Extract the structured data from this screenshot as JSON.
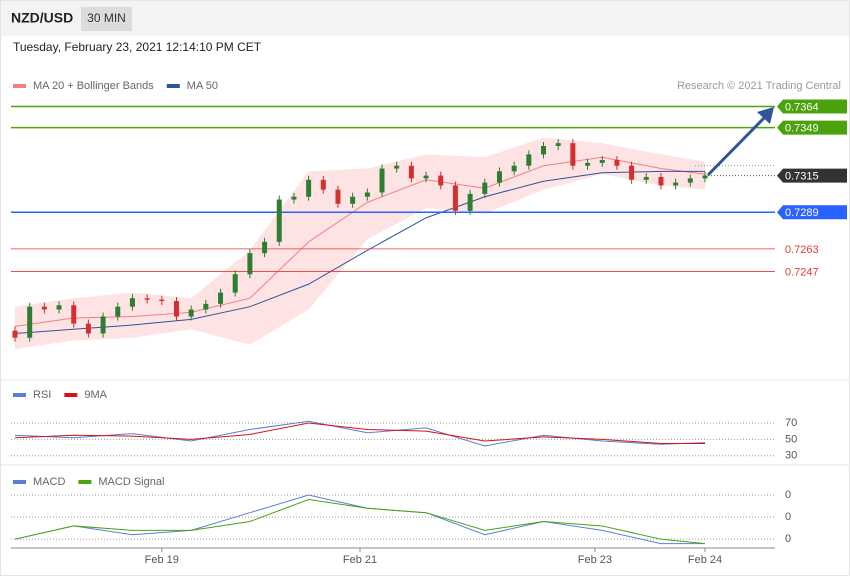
{
  "header": {
    "symbol": "NZD/USD",
    "interval": "30 MIN",
    "timestamp": "Tuesday, February 23, 2021 12:14:10 PM CET"
  },
  "chart_data": [
    {
      "type": "candlestick",
      "source": "Research © 2021 Trading Central",
      "xlim": [
        0,
        47
      ],
      "ylim": [
        0.717,
        0.7414
      ],
      "up_color": "#2e7d32",
      "down_color": "#d32f2f",
      "open": [
        0.7205,
        0.72,
        0.7222,
        0.722,
        0.7223,
        0.721,
        0.7203,
        0.7215,
        0.7222,
        0.7228,
        0.7227,
        0.7226,
        0.7215,
        0.722,
        0.7224,
        0.7232,
        0.7245,
        0.726,
        0.7268,
        0.7298,
        0.73,
        0.7312,
        0.7305,
        0.7295,
        0.73,
        0.7303,
        0.732,
        0.7322,
        0.7313,
        0.7315,
        0.7308,
        0.729,
        0.7302,
        0.731,
        0.7318,
        0.7322,
        0.733,
        0.7336,
        0.7338,
        0.7322,
        0.7324,
        0.7326,
        0.7322,
        0.7312,
        0.7314,
        0.7308,
        0.731,
        0.7313
      ],
      "close": [
        0.72,
        0.7222,
        0.722,
        0.7223,
        0.721,
        0.7203,
        0.7215,
        0.7222,
        0.7228,
        0.7227,
        0.7226,
        0.7215,
        0.722,
        0.7224,
        0.7232,
        0.7245,
        0.726,
        0.7268,
        0.7298,
        0.73,
        0.7312,
        0.7305,
        0.7295,
        0.73,
        0.7303,
        0.732,
        0.7322,
        0.7313,
        0.7315,
        0.7308,
        0.729,
        0.7302,
        0.731,
        0.7318,
        0.7322,
        0.733,
        0.7336,
        0.7338,
        0.7322,
        0.7324,
        0.7326,
        0.7322,
        0.7312,
        0.7314,
        0.7308,
        0.731,
        0.7313,
        0.7315
      ],
      "series": [
        {
          "name": "MA 20 + Bollinger Bands",
          "color": "#f08080",
          "band_color": "#fde3e3",
          "x": [
            0,
            4,
            8,
            12,
            16,
            20,
            24,
            28,
            32,
            36,
            40,
            44,
            47
          ],
          "values": [
            0.7208,
            0.7214,
            0.7215,
            0.7218,
            0.7228,
            0.7268,
            0.7296,
            0.7312,
            0.7306,
            0.7322,
            0.7328,
            0.732,
            0.7316
          ],
          "upper": [
            0.7222,
            0.7228,
            0.7232,
            0.7228,
            0.7262,
            0.7318,
            0.732,
            0.733,
            0.7328,
            0.7342,
            0.7338,
            0.733,
            0.7325
          ],
          "lower": [
            0.7192,
            0.7198,
            0.72,
            0.7206,
            0.7195,
            0.722,
            0.727,
            0.7292,
            0.7288,
            0.7305,
            0.7316,
            0.7308,
            0.7305
          ]
        },
        {
          "name": "MA 50",
          "color": "#2f5597",
          "x": [
            0,
            4,
            8,
            12,
            16,
            20,
            24,
            28,
            32,
            36,
            40,
            44,
            47
          ],
          "values": [
            0.7203,
            0.7206,
            0.7209,
            0.7213,
            0.7222,
            0.7238,
            0.7262,
            0.7285,
            0.73,
            0.7311,
            0.7317,
            0.7318,
            0.7318
          ]
        }
      ],
      "levels": [
        {
          "value": 0.7364,
          "color": "#4ca20c",
          "style": "box"
        },
        {
          "value": 0.7349,
          "color": "#4ca20c",
          "style": "box"
        },
        {
          "value": 0.7315,
          "color": "#333333",
          "style": "current"
        },
        {
          "value": 0.7289,
          "color": "#2962ff",
          "style": "box"
        },
        {
          "value": 0.7263,
          "color": "#e53935",
          "style": "text"
        },
        {
          "value": 0.7247,
          "color": "#e53935",
          "style": "text"
        }
      ]
    },
    {
      "type": "line",
      "xlim": [
        0,
        47
      ],
      "ylim": [
        20,
        115
      ],
      "yticks": [
        70,
        50,
        30
      ],
      "grid": true,
      "series": [
        {
          "name": "RSI",
          "color": "#5b7fd6",
          "x": [
            0,
            4,
            8,
            12,
            16,
            20,
            24,
            28,
            32,
            36,
            40,
            44,
            47
          ],
          "values": [
            55,
            52,
            57,
            48,
            62,
            72,
            58,
            64,
            42,
            55,
            48,
            44,
            46
          ]
        },
        {
          "name": "9MA",
          "color": "#e01010",
          "x": [
            0,
            4,
            8,
            12,
            16,
            20,
            24,
            28,
            32,
            36,
            40,
            44,
            47
          ],
          "values": [
            52,
            55,
            54,
            50,
            56,
            70,
            62,
            60,
            48,
            53,
            50,
            45,
            45
          ]
        }
      ]
    },
    {
      "type": "line",
      "xlim": [
        0,
        47
      ],
      "ylim": [
        -0.0007,
        0.001
      ],
      "yticks": [
        {
          "value": 0.0005,
          "label": "0"
        },
        {
          "value": 0,
          "label": "0"
        },
        {
          "value": -0.0005,
          "label": "0"
        }
      ],
      "grid": true,
      "xticks": [
        {
          "value": 10,
          "label": "Feb 19"
        },
        {
          "value": 23.5,
          "label": "Feb 21"
        },
        {
          "value": 39.5,
          "label": "Feb 23"
        },
        {
          "value": 47,
          "label": "Feb 24"
        }
      ],
      "series": [
        {
          "name": "MACD",
          "color": "#5b7fd6",
          "x": [
            0,
            4,
            8,
            12,
            16,
            20,
            24,
            28,
            32,
            36,
            40,
            44,
            47
          ],
          "values": [
            -0.0005,
            -0.0002,
            -0.0004,
            -0.0003,
            0.0001,
            0.0005,
            0.0002,
            0.0001,
            -0.0004,
            -0.0001,
            -0.0003,
            -0.0006,
            -0.0006
          ]
        },
        {
          "name": "MACD Signal",
          "color": "#4ca20c",
          "x": [
            0,
            4,
            8,
            12,
            16,
            20,
            24,
            28,
            32,
            36,
            40,
            44,
            47
          ],
          "values": [
            -0.0005,
            -0.0002,
            -0.0003,
            -0.0003,
            -0.0001,
            0.0004,
            0.0002,
            0.0001,
            -0.0003,
            -0.0001,
            -0.0002,
            -0.0005,
            -0.0006
          ]
        }
      ]
    }
  ]
}
